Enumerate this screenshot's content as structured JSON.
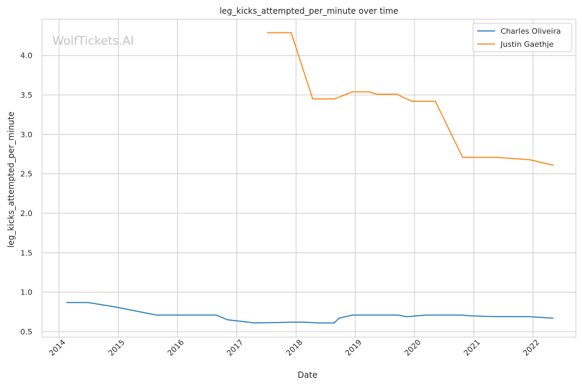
{
  "chart_data": {
    "type": "line",
    "title": "leg_kicks_attempted_per_minute over time",
    "xlabel": "Date",
    "ylabel": "leg_kicks_attempted_per_minute",
    "watermark": "WolfTickets.AI",
    "x_ticks": [
      "2014",
      "2015",
      "2016",
      "2017",
      "2018",
      "2019",
      "2020",
      "2021",
      "2022"
    ],
    "y_ticks": [
      "0.5",
      "1.0",
      "1.5",
      "2.0",
      "2.5",
      "3.0",
      "3.5",
      "4.0"
    ],
    "xlim": [
      "2013-09-18",
      "2022-09-22"
    ],
    "ylim": [
      0.43,
      4.46
    ],
    "grid": true,
    "legend_position": "top-right",
    "series": [
      {
        "name": "Charles Oliveira",
        "color": "#1f77b4",
        "points": [
          [
            "2014-02-15",
            0.87
          ],
          [
            "2014-06-28",
            0.87
          ],
          [
            "2014-12-20",
            0.81
          ],
          [
            "2015-08-23",
            0.71
          ],
          [
            "2016-08-27",
            0.71
          ],
          [
            "2016-11-05",
            0.65
          ],
          [
            "2017-04-22",
            0.61
          ],
          [
            "2017-12-02",
            0.62
          ],
          [
            "2018-03-03",
            0.62
          ],
          [
            "2018-05-19",
            0.61
          ],
          [
            "2018-08-25",
            0.61
          ],
          [
            "2018-09-22",
            0.67
          ],
          [
            "2018-12-15",
            0.71
          ],
          [
            "2019-09-21",
            0.71
          ],
          [
            "2019-11-16",
            0.69
          ],
          [
            "2020-03-14",
            0.71
          ],
          [
            "2020-10-17",
            0.71
          ],
          [
            "2020-12-12",
            0.7
          ],
          [
            "2021-05-15",
            0.69
          ],
          [
            "2021-12-11",
            0.69
          ],
          [
            "2022-05-07",
            0.67
          ]
        ]
      },
      {
        "name": "Justin Gaethje",
        "color": "#ff7f0e",
        "points": [
          [
            "2017-07-07",
            4.29
          ],
          [
            "2017-12-02",
            4.29
          ],
          [
            "2018-04-14",
            3.45
          ],
          [
            "2018-08-25",
            3.45
          ],
          [
            "2018-12-15",
            3.54
          ],
          [
            "2019-03-30",
            3.54
          ],
          [
            "2019-05-11",
            3.51
          ],
          [
            "2019-09-14",
            3.51
          ],
          [
            "2019-12-14",
            3.42
          ],
          [
            "2020-05-09",
            3.42
          ],
          [
            "2020-10-24",
            2.71
          ],
          [
            "2021-05-15",
            2.71
          ],
          [
            "2021-12-11",
            2.68
          ],
          [
            "2022-05-07",
            2.61
          ]
        ]
      }
    ]
  }
}
